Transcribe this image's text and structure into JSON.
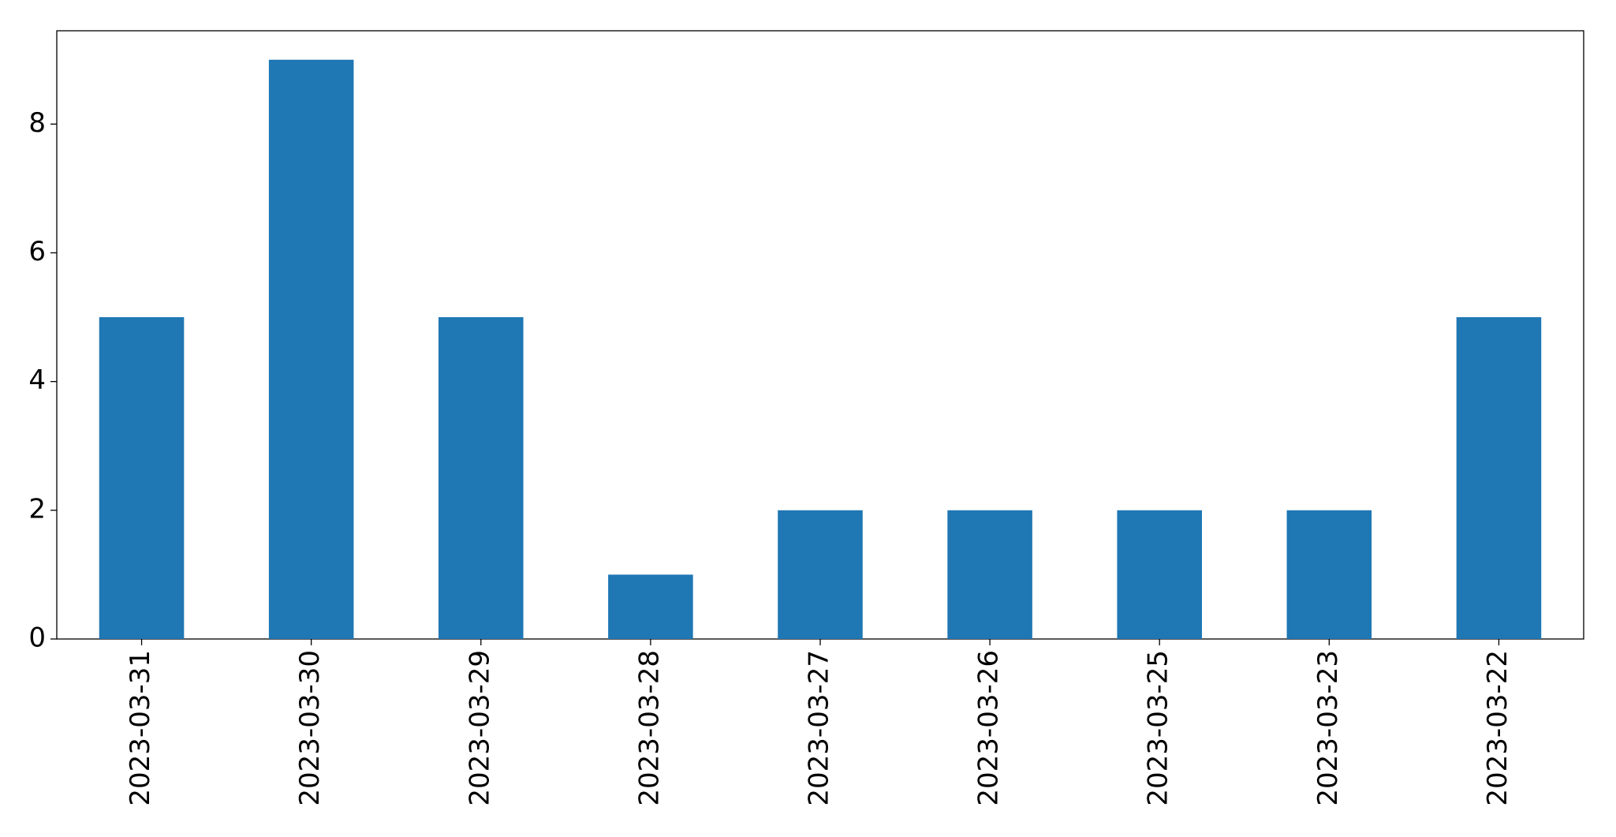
{
  "chart_data": {
    "type": "bar",
    "categories": [
      "2023-03-31",
      "2023-03-30",
      "2023-03-29",
      "2023-03-28",
      "2023-03-27",
      "2023-03-26",
      "2023-03-25",
      "2023-03-23",
      "2023-03-22"
    ],
    "values": [
      5,
      9,
      5,
      1,
      2,
      2,
      2,
      2,
      5
    ],
    "color": "#1f77b4",
    "ylim": [
      0,
      9.45
    ],
    "yticks": [
      0,
      2,
      4,
      6,
      8
    ],
    "grid": false
  }
}
